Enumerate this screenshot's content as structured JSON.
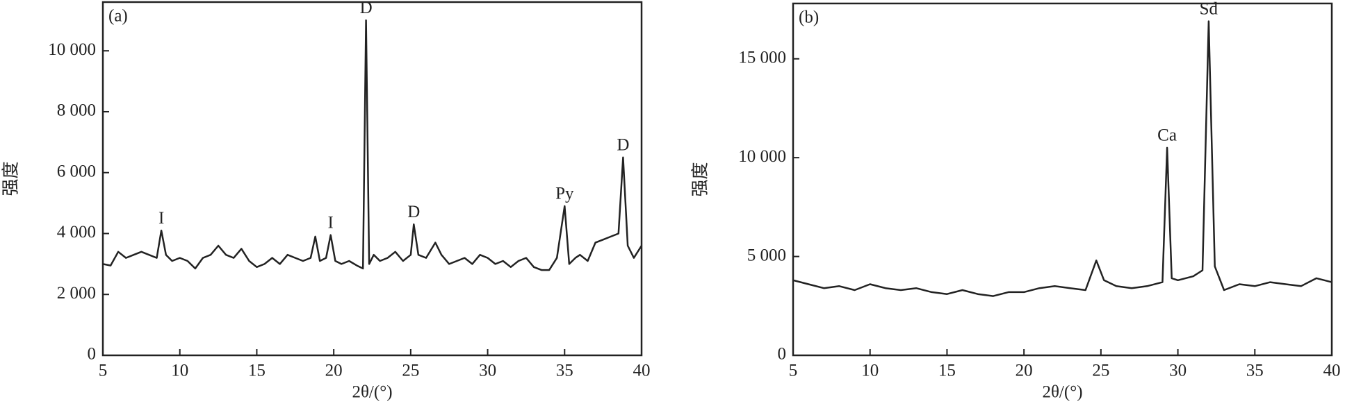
{
  "chart_data": [
    {
      "type": "line",
      "panel_label": "(a)",
      "xlabel": "2θ/(°)",
      "ylabel": "强度",
      "xlim": [
        5,
        40
      ],
      "ylim": [
        0,
        11600
      ],
      "xticks": [
        5,
        10,
        15,
        20,
        25,
        30,
        35,
        40
      ],
      "yticks": [
        0,
        {
          "value": 2000,
          "label": "2 000"
        },
        {
          "value": 4000,
          "label": "4 000"
        },
        {
          "value": 6000,
          "label": "6 000"
        },
        {
          "value": 8000,
          "label": "8 000"
        },
        {
          "value": 10000,
          "label": "10 000"
        }
      ],
      "color": "#222222",
      "x": [
        5,
        5.5,
        6,
        6.5,
        7,
        7.5,
        8,
        8.5,
        8.8,
        9.1,
        9.5,
        10,
        10.5,
        11,
        11.5,
        12,
        12.5,
        13,
        13.5,
        14,
        14.5,
        15,
        15.5,
        16,
        16.5,
        17,
        17.5,
        18,
        18.5,
        18.8,
        19.1,
        19.5,
        19.8,
        20.1,
        20.5,
        21,
        21.5,
        21.9,
        22.1,
        22.3,
        22.6,
        23,
        23.5,
        24,
        24.5,
        25,
        25.2,
        25.5,
        26,
        26.6,
        27,
        27.5,
        28,
        28.5,
        29,
        29.5,
        30,
        30.5,
        31,
        31.5,
        32,
        32.5,
        33,
        33.5,
        34,
        34.5,
        35,
        35.3,
        35.7,
        36,
        36.5,
        37,
        37.5,
        38,
        38.5,
        38.8,
        39.1,
        39.5,
        40
      ],
      "values": [
        3000,
        2950,
        3400,
        3200,
        3300,
        3400,
        3300,
        3200,
        4100,
        3300,
        3100,
        3200,
        3100,
        2850,
        3200,
        3300,
        3600,
        3300,
        3200,
        3500,
        3100,
        2900,
        3000,
        3200,
        3000,
        3300,
        3200,
        3100,
        3200,
        3900,
        3100,
        3200,
        3950,
        3100,
        3000,
        3100,
        2950,
        2850,
        11000,
        3000,
        3300,
        3100,
        3200,
        3400,
        3100,
        3300,
        4300,
        3300,
        3200,
        3700,
        3300,
        3000,
        3100,
        3200,
        3000,
        3300,
        3200,
        3000,
        3100,
        2900,
        3100,
        3200,
        2900,
        2800,
        2800,
        3200,
        4900,
        3000,
        3200,
        3300,
        3100,
        3700,
        3800,
        3900,
        4000,
        6500,
        3600,
        3200,
        3600
      ],
      "annotations": [
        {
          "text": "I",
          "x": 8.8
        },
        {
          "text": "I",
          "x": 19.8
        },
        {
          "text": "D",
          "x": 22.1
        },
        {
          "text": "D",
          "x": 25.2
        },
        {
          "text": "Py",
          "x": 35
        },
        {
          "text": "D",
          "x": 38.8
        }
      ]
    },
    {
      "type": "line",
      "panel_label": "(b)",
      "xlabel": "2θ/(°)",
      "ylabel": "强度",
      "xlim": [
        5,
        40
      ],
      "ylim": [
        0,
        17800
      ],
      "xticks": [
        5,
        10,
        15,
        20,
        25,
        30,
        35,
        40
      ],
      "yticks": [
        0,
        {
          "value": 5000,
          "label": "5 000"
        },
        {
          "value": 10000,
          "label": "10 000"
        },
        {
          "value": 15000,
          "label": "15 000"
        }
      ],
      "color": "#222222",
      "x": [
        5,
        6,
        7,
        8,
        9,
        10,
        11,
        12,
        13,
        14,
        15,
        16,
        17,
        18,
        19,
        20,
        21,
        22,
        23,
        24,
        24.7,
        25.2,
        26,
        27,
        28,
        29,
        29.3,
        29.6,
        30,
        31,
        31.6,
        32,
        32.4,
        33,
        34,
        35,
        36,
        37,
        38,
        39,
        40
      ],
      "values": [
        3800,
        3600,
        3400,
        3500,
        3300,
        3600,
        3400,
        3300,
        3400,
        3200,
        3100,
        3300,
        3100,
        3000,
        3200,
        3200,
        3400,
        3500,
        3400,
        3300,
        4800,
        3800,
        3500,
        3400,
        3500,
        3700,
        10500,
        3900,
        3800,
        4000,
        4300,
        16900,
        4500,
        3300,
        3600,
        3500,
        3700,
        3600,
        3500,
        3900,
        3700
      ],
      "annotations": [
        {
          "text": "Ca",
          "x": 29.3
        },
        {
          "text": "Sd",
          "x": 32
        }
      ]
    }
  ]
}
